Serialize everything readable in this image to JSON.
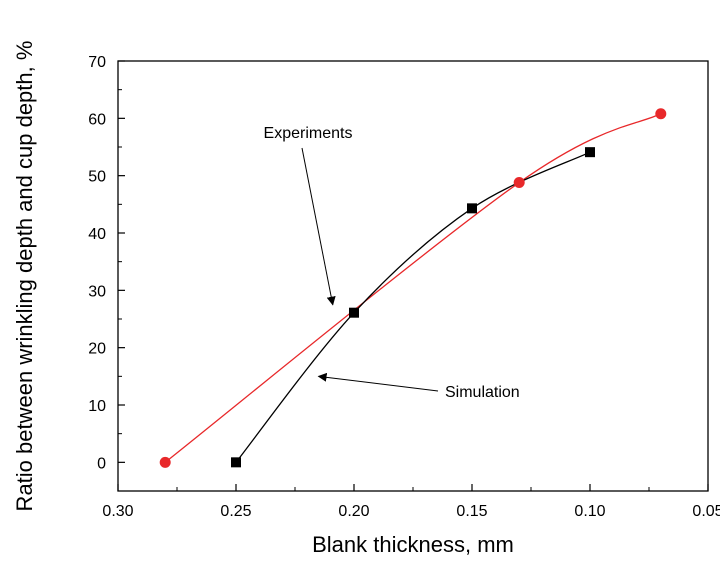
{
  "chart_data": {
    "type": "line",
    "xlabel": "Blank thickness, mm",
    "ylabel": "Ratio between wrinkling depth and cup depth, %",
    "x_reversed": true,
    "xlim": [
      0.3,
      0.05
    ],
    "ylim": [
      -5,
      70
    ],
    "x_ticks": [
      "0.30",
      "0.25",
      "0.20",
      "0.15",
      "0.10",
      "0.05"
    ],
    "y_ticks": [
      "0",
      "10",
      "20",
      "30",
      "40",
      "50",
      "60",
      "70"
    ],
    "grid": false,
    "series": [
      {
        "color": "#e8282a",
        "marker": "circle",
        "x": [
          0.28,
          0.13,
          0.07
        ],
        "y": [
          0,
          48.8,
          60.8
        ]
      },
      {
        "color": "#000000",
        "marker": "square",
        "x": [
          0.25,
          0.2,
          0.15,
          0.1
        ],
        "y": [
          0,
          26.1,
          44.3,
          54.1
        ]
      }
    ],
    "annotations": [
      {
        "text": "Experiments",
        "arrow_to": {
          "x": 0.209,
          "y": 27.5
        }
      },
      {
        "text": "Simulation",
        "arrow_to": {
          "x": 0.215,
          "y": 15.0
        }
      }
    ]
  }
}
